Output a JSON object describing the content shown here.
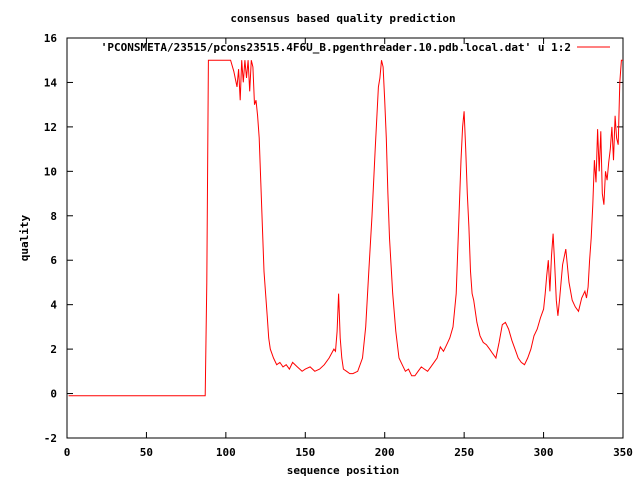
{
  "chart_data": {
    "type": "line",
    "title": "consensus based quality prediction",
    "xlabel": "sequence position",
    "ylabel": "quality",
    "xlim": [
      0,
      350
    ],
    "ylim": [
      -2,
      16
    ],
    "xticks": [
      0,
      50,
      100,
      150,
      200,
      250,
      300,
      350
    ],
    "yticks": [
      -2,
      0,
      2,
      4,
      6,
      8,
      10,
      12,
      14,
      16
    ],
    "grid": false,
    "legend_position": "top-right",
    "series": [
      {
        "name": "'PCONSMETA/23515/pcons23515.4F6U_B.pgenthreader.10.pdb.local.dat' u 1:2",
        "color": "#ff0000",
        "x": [
          1,
          87,
          88,
          89,
          90,
          95,
          100,
          103,
          105,
          107,
          108,
          109,
          110,
          111,
          112,
          113,
          114,
          115,
          116,
          117,
          118,
          119,
          120,
          121,
          122,
          123,
          124,
          125,
          126,
          127,
          128,
          129,
          130,
          132,
          134,
          136,
          138,
          140,
          142,
          145,
          148,
          150,
          153,
          156,
          159,
          162,
          165,
          168,
          169,
          170,
          171,
          172,
          173,
          174,
          176,
          178,
          180,
          183,
          186,
          188,
          190,
          192,
          194,
          196,
          197,
          198,
          199,
          200,
          201,
          202,
          203,
          205,
          207,
          209,
          211,
          213,
          215,
          217,
          219,
          221,
          223,
          225,
          227,
          229,
          231,
          233,
          235,
          237,
          239,
          241,
          243,
          245,
          246,
          247,
          248,
          249,
          250,
          251,
          252,
          253,
          254,
          255,
          256,
          258,
          260,
          262,
          264,
          266,
          268,
          270,
          272,
          274,
          276,
          278,
          280,
          282,
          284,
          286,
          288,
          290,
          292,
          294,
          296,
          298,
          300,
          301,
          302,
          303,
          304,
          305,
          306,
          307,
          308,
          309,
          310,
          312,
          314,
          316,
          318,
          320,
          322,
          324,
          326,
          327,
          328,
          329,
          330,
          331,
          332,
          333,
          334,
          335,
          336,
          337,
          338,
          339,
          340,
          341,
          342,
          343,
          344,
          345,
          346,
          347,
          348,
          349,
          350
        ],
        "y": [
          -0.1,
          -0.1,
          5.0,
          15.0,
          15.0,
          15.0,
          15.0,
          15.0,
          14.5,
          13.8,
          14.6,
          13.2,
          15.0,
          14.0,
          15.0,
          14.2,
          15.0,
          13.6,
          15.0,
          14.7,
          13.0,
          13.2,
          12.5,
          11.5,
          9.5,
          7.5,
          5.5,
          4.5,
          3.5,
          2.5,
          2.0,
          1.8,
          1.6,
          1.3,
          1.4,
          1.2,
          1.3,
          1.1,
          1.4,
          1.2,
          1.0,
          1.1,
          1.2,
          1.0,
          1.1,
          1.3,
          1.6,
          2.0,
          1.9,
          2.8,
          4.5,
          2.5,
          1.6,
          1.1,
          1.0,
          0.9,
          0.9,
          1.0,
          1.6,
          3.0,
          5.5,
          8.0,
          11.0,
          13.8,
          14.2,
          15.0,
          14.7,
          13.2,
          11.5,
          9.0,
          7.0,
          4.5,
          2.8,
          1.6,
          1.3,
          1.0,
          1.1,
          0.8,
          0.8,
          1.0,
          1.2,
          1.1,
          1.0,
          1.2,
          1.4,
          1.6,
          2.1,
          1.9,
          2.2,
          2.5,
          3.0,
          4.5,
          6.5,
          8.5,
          10.5,
          12.0,
          12.7,
          11.0,
          9.0,
          7.5,
          5.5,
          4.5,
          4.2,
          3.2,
          2.6,
          2.3,
          2.2,
          2.0,
          1.8,
          1.6,
          2.3,
          3.1,
          3.2,
          2.9,
          2.4,
          2.0,
          1.6,
          1.4,
          1.3,
          1.6,
          2.0,
          2.6,
          2.9,
          3.4,
          3.8,
          4.5,
          5.3,
          6.0,
          4.6,
          6.2,
          7.2,
          5.8,
          4.2,
          3.5,
          4.2,
          5.8,
          6.5,
          5.0,
          4.2,
          3.9,
          3.7,
          4.3,
          4.6,
          4.3,
          4.8,
          6.0,
          7.0,
          8.5,
          10.5,
          9.5,
          11.9,
          10.0,
          11.8,
          9.0,
          8.5,
          10.0,
          9.6,
          10.4,
          11.0,
          12.0,
          10.5,
          12.5,
          11.5,
          11.2,
          14.0,
          15.0,
          15.0
        ]
      }
    ]
  }
}
